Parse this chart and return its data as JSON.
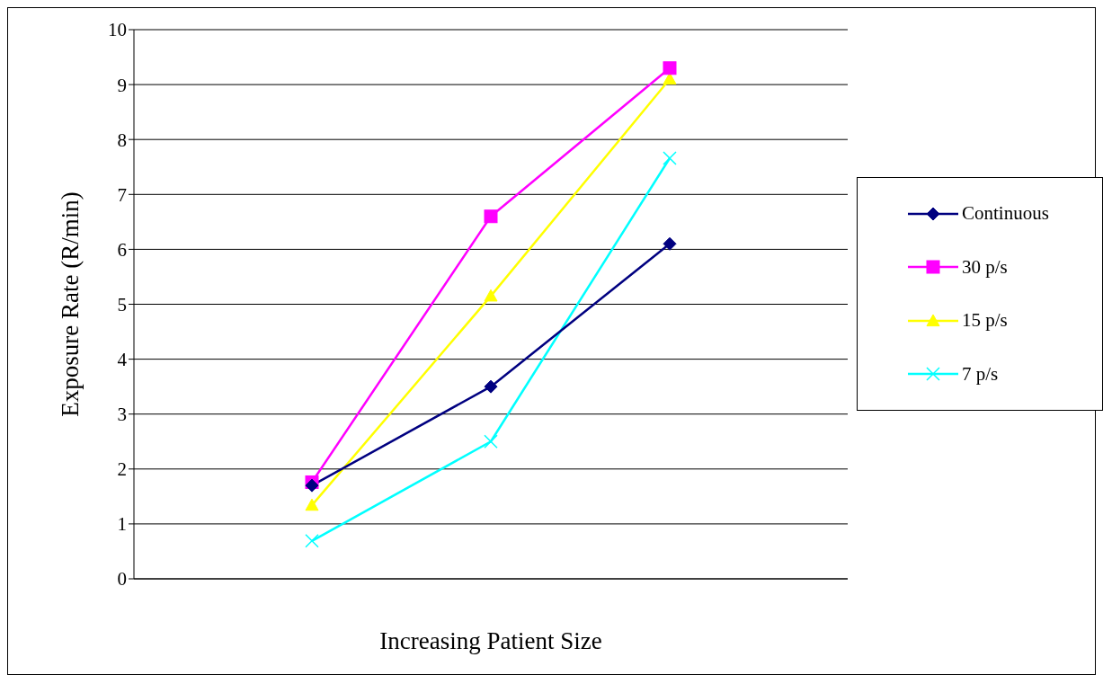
{
  "chart_data": {
    "type": "line",
    "xlabel": "Increasing Patient Size",
    "ylabel": "Exposure Rate (R/min)",
    "categories": [
      null,
      null,
      null
    ],
    "series": [
      {
        "name": "Continuous",
        "color": "#000080",
        "marker": "diamond",
        "values": [
          1.7,
          3.5,
          6.1
        ]
      },
      {
        "name": "30 p/s",
        "color": "#ff00ff",
        "marker": "square",
        "values": [
          1.76,
          6.6,
          9.3
        ]
      },
      {
        "name": "15 p/s",
        "color": "#ffff00",
        "marker": "triangle",
        "values": [
          1.34,
          5.15,
          9.1
        ]
      },
      {
        "name": "7 p/s",
        "color": "#00ffff",
        "marker": "cross",
        "values": [
          0.69,
          2.5,
          7.66
        ]
      }
    ],
    "ylim": [
      0,
      10
    ],
    "yticks": [
      0,
      1,
      2,
      3,
      4,
      5,
      6,
      7,
      8,
      9,
      10
    ],
    "grid": true,
    "legend": "right",
    "tick_labels": "y"
  }
}
